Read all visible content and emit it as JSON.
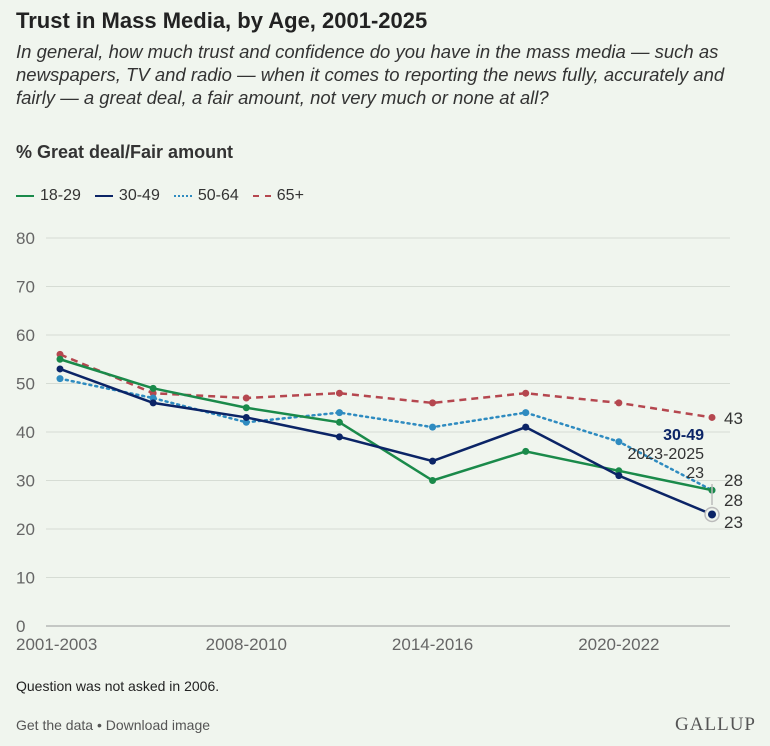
{
  "title": "Trust in Mass Media, by Age, 2001-2025",
  "subtitle": "In general, how much trust and confidence do you have in the mass media — such as newspapers, TV and radio — when it comes to reporting the news fully, accurately and fairly — a great deal, a fair amount, not very much or none at all?",
  "note": "Question was not asked in 2006.",
  "footer": {
    "get_data": "Get the data",
    "separator": " • ",
    "download": "Download image",
    "logo": "GALLUP"
  },
  "tooltip": {
    "series": "30-49",
    "period": "2023-2025",
    "value": "23"
  },
  "chart_data": {
    "type": "line",
    "title": "Trust in Mass Media, by Age, 2001-2025",
    "ylabel": "% Great deal/Fair amount",
    "xlabel": "",
    "ylim": [
      0,
      80
    ],
    "yticks": [
      "0",
      "10",
      "20",
      "30",
      "40",
      "50",
      "60",
      "70",
      "80"
    ],
    "categories": [
      "2001-2003",
      "",
      "2008-2010",
      "",
      "2014-2016",
      "",
      "2020-2022",
      "2023-2025"
    ],
    "xtick_labels": [
      "2001-2003",
      "2008-2010",
      "2014-2016",
      "2020-2022"
    ],
    "grid": true,
    "legend": "top-left",
    "series": [
      {
        "name": "18-29",
        "color": "#1a8a4a",
        "style": "solid",
        "values": [
          55,
          49,
          45,
          42,
          30,
          36,
          32,
          28
        ]
      },
      {
        "name": "30-49",
        "color": "#0b2466",
        "style": "solid",
        "values": [
          53,
          46,
          43,
          39,
          34,
          41,
          31,
          23
        ]
      },
      {
        "name": "50-64",
        "color": "#2e8bc0",
        "style": "dotted",
        "values": [
          51,
          47,
          42,
          44,
          41,
          44,
          38,
          28
        ]
      },
      {
        "name": "65+",
        "color": "#b5474f",
        "style": "dashed",
        "values": [
          56,
          48,
          47,
          48,
          46,
          48,
          46,
          43
        ]
      }
    ],
    "end_labels": [
      "43",
      "28",
      "28",
      "23"
    ]
  }
}
